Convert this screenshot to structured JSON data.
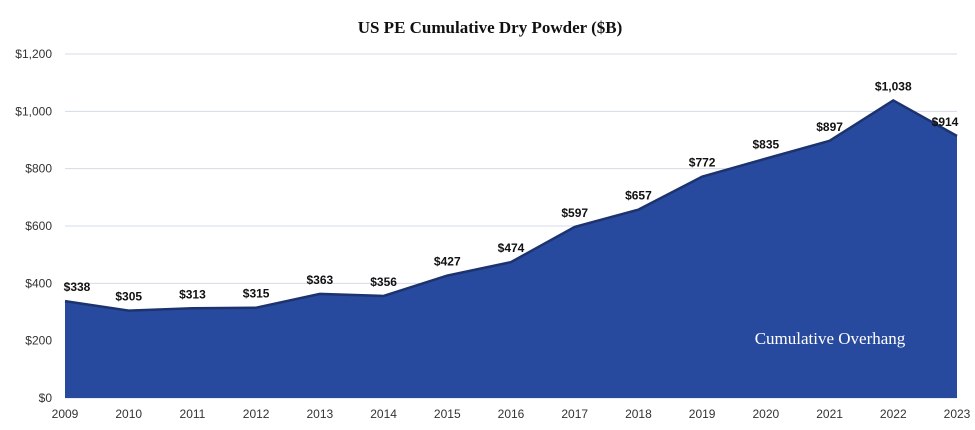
{
  "chart_data": {
    "type": "area",
    "title": "US PE Cumulative Dry Powder ($B)",
    "xlabel": "",
    "ylabel": "",
    "categories": [
      "2009",
      "2010",
      "2011",
      "2012",
      "2013",
      "2014",
      "2015",
      "2016",
      "2017",
      "2018",
      "2019",
      "2020",
      "2021",
      "2022",
      "2023"
    ],
    "values": [
      338,
      305,
      313,
      315,
      363,
      356,
      427,
      474,
      597,
      657,
      772,
      835,
      897,
      1038,
      914
    ],
    "data_labels": [
      "$338",
      "$305",
      "$313",
      "$315",
      "$363",
      "$356",
      "$427",
      "$474",
      "$597",
      "$657",
      "$772",
      "$835",
      "$897",
      "$1,038",
      "$914"
    ],
    "ylim": [
      0,
      1200
    ],
    "yticks": [
      0,
      200,
      400,
      600,
      800,
      1000,
      1200
    ],
    "ytick_labels": [
      "$0",
      "$200",
      "$400",
      "$600",
      "$800",
      "$1,000",
      "$1,200"
    ],
    "grid": true,
    "annotation": "Cumulative Overhang",
    "colors": {
      "fill": "#284a9e",
      "line": "#1c3370",
      "grid": "#d5dbe8"
    }
  }
}
